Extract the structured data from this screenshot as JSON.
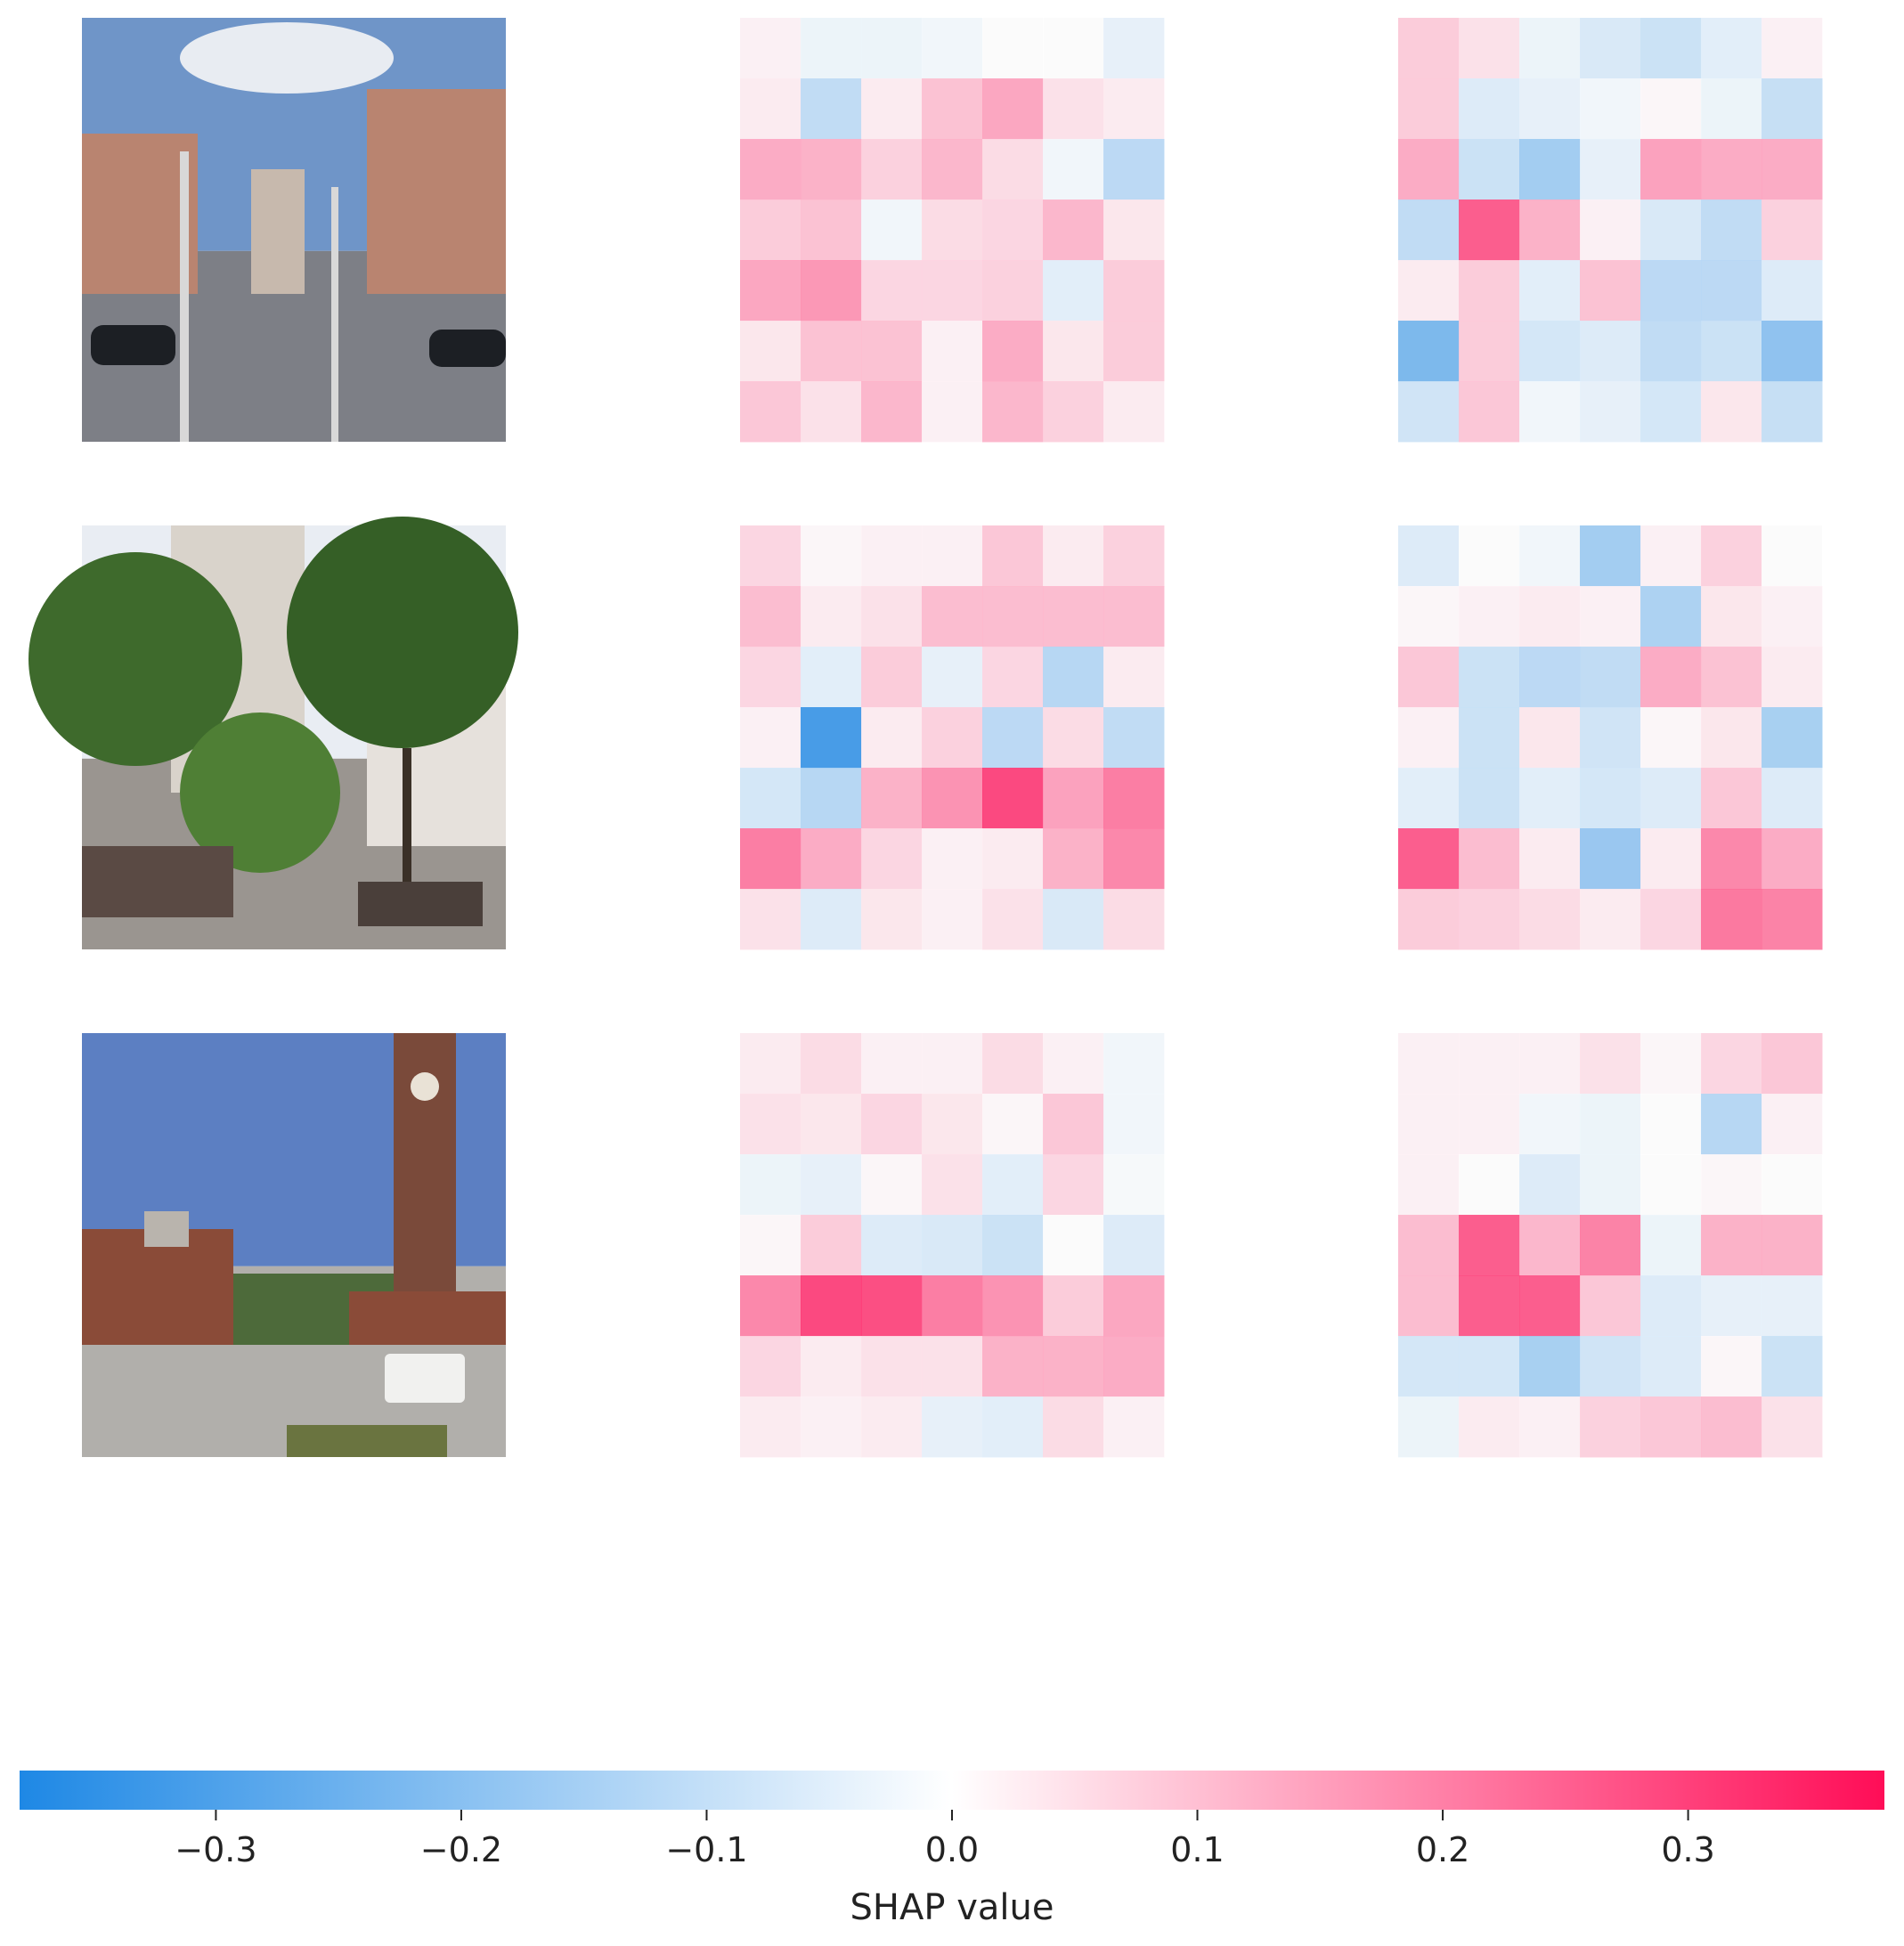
{
  "chart_data": {
    "type": "heatmap",
    "description_of_layout": "",
    "rows": [
      {
        "photo": {
          "scene": "street-intersection",
          "sky": "#6f95c8",
          "cloud": "#e8ecf2",
          "building": "#b98470",
          "road": "#7d7f86"
        },
        "explanations": [
          [
            [
              0.02,
              -0.03,
              -0.03,
              -0.02,
              0.0,
              0.0,
              -0.04
            ],
            [
              0.03,
              -0.12,
              0.03,
              0.11,
              0.16,
              0.05,
              0.03
            ],
            [
              0.15,
              0.14,
              0.08,
              0.13,
              0.06,
              -0.02,
              -0.13
            ],
            [
              0.09,
              0.11,
              -0.02,
              0.06,
              0.07,
              0.13,
              0.04
            ],
            [
              0.16,
              0.19,
              0.07,
              0.07,
              0.08,
              -0.05,
              0.09
            ],
            [
              0.04,
              0.11,
              0.11,
              0.02,
              0.15,
              0.04,
              0.09
            ],
            [
              0.1,
              0.05,
              0.13,
              0.02,
              0.13,
              0.08,
              0.03
            ]
          ],
          [
            [
              0.09,
              0.05,
              -0.03,
              -0.07,
              -0.1,
              -0.05,
              0.02
            ],
            [
              0.09,
              -0.06,
              -0.04,
              -0.02,
              0.01,
              -0.03,
              -0.11
            ],
            [
              0.15,
              -0.1,
              -0.18,
              -0.04,
              0.17,
              0.15,
              0.15
            ],
            [
              -0.12,
              0.3,
              0.14,
              0.02,
              -0.07,
              -0.12,
              0.08
            ],
            [
              0.03,
              0.09,
              -0.05,
              0.11,
              -0.13,
              -0.13,
              -0.06
            ],
            [
              -0.26,
              0.09,
              -0.08,
              -0.06,
              -0.12,
              -0.1,
              -0.22
            ],
            [
              -0.09,
              0.1,
              -0.02,
              -0.04,
              -0.08,
              0.04,
              -0.11
            ]
          ]
        ]
      },
      {
        "photo": {
          "scene": "tree-lined-street",
          "sky": "#e9edf3",
          "cloud": "#f3f5f8",
          "building": "#d9d3cb",
          "road": "#9a9590"
        },
        "explanations": [
          [
            [
              0.07,
              0.01,
              0.02,
              0.02,
              0.1,
              0.03,
              0.08
            ],
            [
              0.12,
              0.03,
              0.05,
              0.12,
              0.12,
              0.12,
              0.12
            ],
            [
              0.07,
              -0.05,
              0.09,
              -0.04,
              0.07,
              -0.14,
              0.03
            ],
            [
              0.02,
              -0.37,
              0.03,
              0.08,
              -0.13,
              0.06,
              -0.12
            ],
            [
              -0.08,
              -0.14,
              0.14,
              0.2,
              0.34,
              0.17,
              0.24
            ],
            [
              0.24,
              0.15,
              0.07,
              0.02,
              0.03,
              0.14,
              0.22
            ],
            [
              0.05,
              -0.06,
              0.04,
              0.02,
              0.05,
              -0.07,
              0.06
            ]
          ],
          [
            [
              -0.06,
              0.0,
              -0.02,
              -0.18,
              0.02,
              0.08,
              0.0
            ],
            [
              0.01,
              0.02,
              0.03,
              0.02,
              -0.16,
              0.04,
              0.02
            ],
            [
              0.1,
              -0.1,
              -0.13,
              -0.12,
              0.15,
              0.11,
              0.03
            ],
            [
              0.02,
              -0.1,
              0.04,
              -0.09,
              0.01,
              0.04,
              -0.17
            ],
            [
              -0.05,
              -0.1,
              -0.05,
              -0.08,
              -0.06,
              0.1,
              -0.06
            ],
            [
              0.3,
              0.12,
              0.03,
              -0.2,
              0.03,
              0.22,
              0.15
            ],
            [
              0.09,
              0.08,
              0.06,
              0.03,
              0.07,
              0.25,
              0.23
            ]
          ]
        ]
      },
      {
        "photo": {
          "scene": "clock-tower-plaza",
          "sky": "#5c7fc2",
          "cloud": "#a9bde0",
          "building": "#8a4b38",
          "road": "#b1afab"
        },
        "explanations": [
          [
            [
              0.03,
              0.06,
              0.02,
              0.02,
              0.06,
              0.02,
              -0.02
            ],
            [
              0.05,
              0.04,
              0.07,
              0.04,
              0.01,
              0.1,
              -0.02
            ],
            [
              -0.03,
              -0.04,
              0.01,
              0.05,
              -0.05,
              0.07,
              -0.01
            ],
            [
              0.01,
              0.09,
              -0.06,
              -0.07,
              -0.1,
              0.0,
              -0.06
            ],
            [
              0.22,
              0.34,
              0.33,
              0.24,
              0.2,
              0.09,
              0.16
            ],
            [
              0.07,
              0.03,
              0.05,
              0.05,
              0.14,
              0.14,
              0.15
            ],
            [
              0.03,
              0.02,
              0.03,
              -0.04,
              -0.05,
              0.06,
              0.02
            ]
          ],
          [
            [
              0.02,
              0.02,
              0.02,
              0.05,
              0.01,
              0.07,
              0.1
            ],
            [
              0.02,
              0.02,
              -0.02,
              -0.03,
              0.0,
              -0.14,
              0.02
            ],
            [
              0.02,
              0.0,
              -0.06,
              -0.03,
              0.0,
              0.01,
              0.0
            ],
            [
              0.12,
              0.3,
              0.13,
              0.23,
              -0.03,
              0.14,
              0.14
            ],
            [
              0.12,
              0.3,
              0.3,
              0.1,
              -0.06,
              -0.04,
              -0.04
            ],
            [
              -0.08,
              -0.08,
              -0.17,
              -0.09,
              -0.06,
              0.01,
              -0.1
            ],
            [
              -0.03,
              0.03,
              0.02,
              0.08,
              0.1,
              0.12,
              0.05
            ]
          ]
        ]
      }
    ],
    "colorbar": {
      "title": "SHAP value",
      "range": [
        -0.38,
        0.38
      ],
      "ticks": [
        -0.3,
        -0.2,
        -0.1,
        0.0,
        0.1,
        0.2,
        0.3
      ],
      "tick_labels": [
        "−0.3",
        "−0.2",
        "−0.1",
        "0.0",
        "0.1",
        "0.2",
        "0.3"
      ],
      "color_negative": "#1e88e5",
      "color_zero": "#ffffff",
      "color_positive": "#ff0d57"
    }
  }
}
